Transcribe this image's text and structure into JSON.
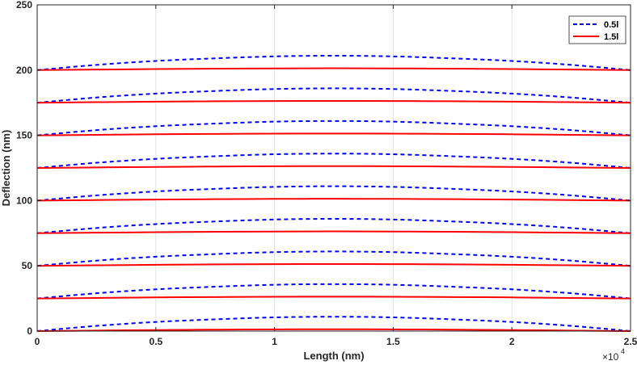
{
  "chart_data": {
    "type": "line",
    "title": "",
    "xlabel": "Length (nm)",
    "ylabel": "Deflection (nm)",
    "xlim": [
      0,
      25000
    ],
    "ylim": [
      0,
      250
    ],
    "x_exponent_label": "×10",
    "x_exponent_power": "4",
    "xticks": [
      0,
      5000,
      10000,
      15000,
      20000,
      25000
    ],
    "xtick_labels": [
      "0",
      "0.5",
      "1",
      "1.5",
      "2",
      "2.5"
    ],
    "yticks": [
      0,
      50,
      100,
      150,
      200,
      250
    ],
    "ytick_labels": [
      "0",
      "50",
      "100",
      "150",
      "200",
      "250"
    ],
    "grid": true,
    "legend_position": "top-right",
    "legend": [
      {
        "label": "0.5l",
        "color": "#0000ff",
        "style": "dashed"
      },
      {
        "label": "1.5l",
        "color": "#ff0000",
        "style": "solid"
      }
    ],
    "x": [
      0,
      2500,
      5000,
      7500,
      10000,
      12500,
      15000,
      17500,
      20000,
      22500,
      25000
    ],
    "series": [
      {
        "group": "0.5l",
        "color": "#0000ff",
        "style": "dashed",
        "values": [
          0,
          4.0,
          7.0,
          9.0,
          10.5,
          11.0,
          10.5,
          9.0,
          7.0,
          4.0,
          0
        ]
      },
      {
        "group": "1.5l",
        "color": "#ff0000",
        "style": "solid",
        "values": [
          0,
          0.4,
          0.8,
          1.1,
          1.3,
          1.4,
          1.3,
          1.1,
          0.8,
          0.4,
          0
        ]
      },
      {
        "group": "0.5l",
        "color": "#0000ff",
        "style": "dashed",
        "values": [
          25,
          29.0,
          32.0,
          34.0,
          35.5,
          36.0,
          35.5,
          34.0,
          32.0,
          29.0,
          25
        ]
      },
      {
        "group": "1.5l",
        "color": "#ff0000",
        "style": "solid",
        "values": [
          25,
          25.4,
          25.8,
          26.1,
          26.3,
          26.4,
          26.3,
          26.1,
          25.8,
          25.4,
          25
        ]
      },
      {
        "group": "0.5l",
        "color": "#0000ff",
        "style": "dashed",
        "values": [
          50,
          54.0,
          57.0,
          59.0,
          60.5,
          61.0,
          60.5,
          59.0,
          57.0,
          54.0,
          50
        ]
      },
      {
        "group": "1.5l",
        "color": "#ff0000",
        "style": "solid",
        "values": [
          50,
          50.4,
          50.8,
          51.1,
          51.3,
          51.4,
          51.3,
          51.1,
          50.8,
          50.4,
          50
        ]
      },
      {
        "group": "0.5l",
        "color": "#0000ff",
        "style": "dashed",
        "values": [
          75,
          79.0,
          82.0,
          84.0,
          85.5,
          86.0,
          85.5,
          84.0,
          82.0,
          79.0,
          75
        ]
      },
      {
        "group": "1.5l",
        "color": "#ff0000",
        "style": "solid",
        "values": [
          75,
          75.4,
          75.8,
          76.1,
          76.3,
          76.4,
          76.3,
          76.1,
          75.8,
          75.4,
          75
        ]
      },
      {
        "group": "0.5l",
        "color": "#0000ff",
        "style": "dashed",
        "values": [
          100,
          104.0,
          107.0,
          109.0,
          110.5,
          111.0,
          110.5,
          109.0,
          107.0,
          104.0,
          100
        ]
      },
      {
        "group": "1.5l",
        "color": "#ff0000",
        "style": "solid",
        "values": [
          100,
          100.4,
          100.8,
          101.1,
          101.3,
          101.4,
          101.3,
          101.1,
          100.8,
          100.4,
          100
        ]
      },
      {
        "group": "0.5l",
        "color": "#0000ff",
        "style": "dashed",
        "values": [
          125,
          129.0,
          132.0,
          134.0,
          135.5,
          136.0,
          135.5,
          134.0,
          132.0,
          129.0,
          125
        ]
      },
      {
        "group": "1.5l",
        "color": "#ff0000",
        "style": "solid",
        "values": [
          125,
          125.4,
          125.8,
          126.1,
          126.3,
          126.4,
          126.3,
          126.1,
          125.8,
          125.4,
          125
        ]
      },
      {
        "group": "0.5l",
        "color": "#0000ff",
        "style": "dashed",
        "values": [
          150,
          154.0,
          157.0,
          159.0,
          160.5,
          161.0,
          160.5,
          159.0,
          157.0,
          154.0,
          150
        ]
      },
      {
        "group": "1.5l",
        "color": "#ff0000",
        "style": "solid",
        "values": [
          150,
          150.4,
          150.8,
          151.1,
          151.3,
          151.4,
          151.3,
          151.1,
          150.8,
          150.4,
          150
        ]
      },
      {
        "group": "0.5l",
        "color": "#0000ff",
        "style": "dashed",
        "values": [
          175,
          179.0,
          182.0,
          184.0,
          185.5,
          186.0,
          185.5,
          184.0,
          182.0,
          179.0,
          175
        ]
      },
      {
        "group": "1.5l",
        "color": "#ff0000",
        "style": "solid",
        "values": [
          175,
          175.4,
          175.8,
          176.1,
          176.3,
          176.4,
          176.3,
          176.1,
          175.8,
          175.4,
          175
        ]
      },
      {
        "group": "0.5l",
        "color": "#0000ff",
        "style": "dashed",
        "values": [
          200,
          204.0,
          207.0,
          209.0,
          210.5,
          211.0,
          210.5,
          209.0,
          207.0,
          204.0,
          200
        ]
      },
      {
        "group": "1.5l",
        "color": "#ff0000",
        "style": "solid",
        "values": [
          200,
          200.4,
          200.8,
          201.1,
          201.3,
          201.4,
          201.3,
          201.1,
          200.8,
          200.4,
          200
        ]
      }
    ]
  }
}
